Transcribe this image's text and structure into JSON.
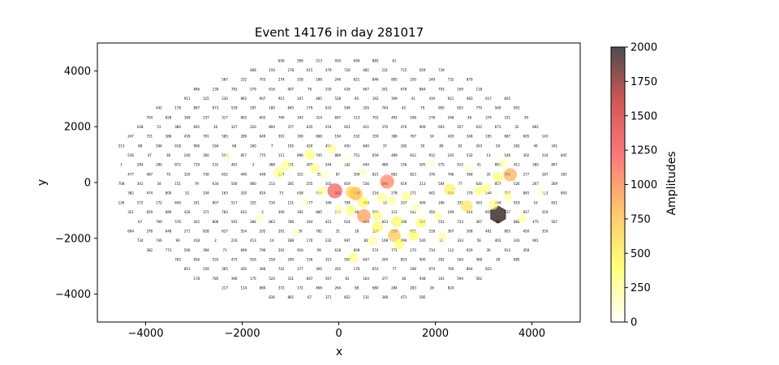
{
  "chart_data": {
    "type": "scatter",
    "title": "Event 14176 in day 281017",
    "xlabel": "x",
    "ylabel": "y",
    "xlim": [
      -5000,
      5000
    ],
    "ylim": [
      -5000,
      5000
    ],
    "xticks": [
      -4000,
      -2000,
      0,
      2000,
      4000
    ],
    "yticks": [
      -4000,
      -2000,
      0,
      2000,
      4000
    ],
    "colorbar": {
      "label": "Amplitudes",
      "range": [
        0,
        2000
      ],
      "ticks": [
        0,
        250,
        500,
        750,
        1000,
        1250,
        1500,
        1750,
        2000
      ],
      "colormap": "hot_r",
      "stops": [
        "#ffffff",
        "#ffff40",
        "#ffb030",
        "#ff4040",
        "#c01010",
        "#000000"
      ]
    },
    "grid": false,
    "detector_outline": {
      "x_range": [
        -4700,
        4800
      ],
      "y_range": [
        -4500,
        4500
      ]
    },
    "hit_points": [
      {
        "x": -80,
        "y": -300,
        "amplitude": 1250
      },
      {
        "x": 1000,
        "y": 30,
        "amplitude": 1050
      },
      {
        "x": 520,
        "y": -1200,
        "amplitude": 950
      },
      {
        "x": 350,
        "y": -400,
        "amplitude": 850
      },
      {
        "x": 3550,
        "y": 280,
        "amplitude": 850
      },
      {
        "x": 1150,
        "y": -1900,
        "amplitude": 750
      },
      {
        "x": 3300,
        "y": -1150,
        "amplitude": 1950
      },
      {
        "x": 260,
        "y": -350,
        "amplitude": 650
      },
      {
        "x": 2650,
        "y": -850,
        "amplitude": 550
      },
      {
        "x": 2300,
        "y": -250,
        "amplitude": 500
      },
      {
        "x": 1200,
        "y": -1400,
        "amplitude": 450
      },
      {
        "x": 500,
        "y": -700,
        "amplitude": 420
      },
      {
        "x": 800,
        "y": -1600,
        "amplitude": 400
      },
      {
        "x": 1250,
        "y": -2200,
        "amplitude": 380
      },
      {
        "x": 1550,
        "y": -1900,
        "amplitude": 380
      },
      {
        "x": 250,
        "y": -1000,
        "amplitude": 350
      },
      {
        "x": -600,
        "y": 1000,
        "amplitude": 350
      },
      {
        "x": 1700,
        "y": -1450,
        "amplitude": 350
      },
      {
        "x": 3300,
        "y": 200,
        "amplitude": 350
      },
      {
        "x": -1250,
        "y": 350,
        "amplitude": 320
      },
      {
        "x": 300,
        "y": -2700,
        "amplitude": 320
      },
      {
        "x": 800,
        "y": -1200,
        "amplitude": 320
      },
      {
        "x": 900,
        "y": -550,
        "amplitude": 300
      },
      {
        "x": -1100,
        "y": 600,
        "amplitude": 300
      },
      {
        "x": -500,
        "y": 500,
        "amplitude": 300
      },
      {
        "x": 1400,
        "y": -500,
        "amplitude": 300
      },
      {
        "x": 3200,
        "y": -800,
        "amplitude": 300
      },
      {
        "x": 2900,
        "y": -300,
        "amplitude": 280
      },
      {
        "x": 3050,
        "y": -200,
        "amplitude": 280
      },
      {
        "x": -150,
        "y": 1200,
        "amplitude": 250
      },
      {
        "x": 700,
        "y": -2100,
        "amplitude": 250
      },
      {
        "x": -350,
        "y": -300,
        "amplitude": 250
      },
      {
        "x": 3500,
        "y": -500,
        "amplitude": 250
      },
      {
        "x": 3800,
        "y": -1300,
        "amplitude": 220
      },
      {
        "x": 2150,
        "y": -1950,
        "amplitude": 220
      },
      {
        "x": 1100,
        "y": -650,
        "amplitude": 220
      },
      {
        "x": 0,
        "y": -950,
        "amplitude": 200
      },
      {
        "x": 3400,
        "y": 700,
        "amplitude": 200
      },
      {
        "x": 2050,
        "y": -1200,
        "amplitude": 200
      },
      {
        "x": 1600,
        "y": -900,
        "amplitude": 180
      },
      {
        "x": -1650,
        "y": -1300,
        "amplitude": 150
      },
      {
        "x": -900,
        "y": -1800,
        "amplitude": 150
      },
      {
        "x": -300,
        "y": 300,
        "amplitude": 150
      },
      {
        "x": 500,
        "y": 400,
        "amplitude": 150
      },
      {
        "x": 4200,
        "y": -300,
        "amplitude": 120
      },
      {
        "x": -2300,
        "y": 900,
        "amplitude": 120
      },
      {
        "x": 1900,
        "y": 700,
        "amplitude": 120
      },
      {
        "x": 2700,
        "y": 500,
        "amplitude": 110
      },
      {
        "x": -700,
        "y": -700,
        "amplitude": 110
      },
      {
        "x": 150,
        "y": 800,
        "amplitude": 100
      }
    ]
  }
}
